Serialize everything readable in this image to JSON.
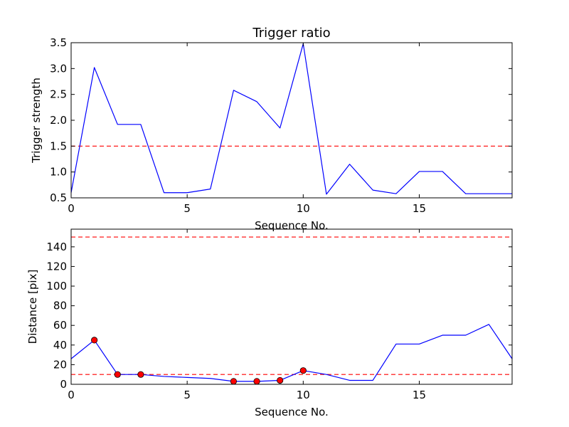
{
  "chart_data": [
    {
      "type": "line",
      "title": "Trigger ratio",
      "xlabel": "Sequence No.",
      "ylabel": "Trigger strength",
      "xlim": [
        0,
        19
      ],
      "ylim": [
        0.5,
        3.5
      ],
      "xticks": [
        0,
        5,
        10,
        15
      ],
      "xtick_labels": [
        "0",
        "5",
        "10",
        "15"
      ],
      "yticks": [
        0.5,
        1.0,
        1.5,
        2.0,
        2.5,
        3.0,
        3.5
      ],
      "ytick_labels": [
        "0.5",
        "1.0",
        "1.5",
        "2.0",
        "2.5",
        "3.0",
        "3.5"
      ],
      "grid": false,
      "series": [
        {
          "color": "#0000ff",
          "style": "solid",
          "x": [
            0,
            1,
            2,
            3,
            4,
            5,
            6,
            7,
            8,
            9,
            10,
            11,
            12,
            13,
            14,
            15,
            16,
            17,
            18,
            19
          ],
          "y": [
            0.6,
            3.02,
            1.92,
            1.92,
            0.6,
            0.6,
            0.67,
            2.58,
            2.36,
            1.85,
            3.48,
            0.57,
            1.15,
            0.65,
            0.58,
            1.01,
            1.01,
            0.58,
            0.58,
            0.58
          ]
        }
      ],
      "reference_lines": [
        {
          "axis": "y",
          "value": 1.5,
          "color": "#ff0000",
          "style": "dashed"
        }
      ]
    },
    {
      "type": "line",
      "title": "",
      "xlabel": "Sequence No.",
      "ylabel": "Distance [pix]",
      "xlim": [
        0,
        19
      ],
      "ylim": [
        0,
        158
      ],
      "xticks": [
        0,
        5,
        10,
        15
      ],
      "xtick_labels": [
        "0",
        "5",
        "10",
        "15"
      ],
      "yticks": [
        0,
        20,
        40,
        60,
        80,
        100,
        120,
        140
      ],
      "ytick_labels": [
        "0",
        "20",
        "40",
        "60",
        "80",
        "100",
        "120",
        "140"
      ],
      "grid": false,
      "series": [
        {
          "color": "#0000ff",
          "style": "solid",
          "x": [
            0,
            1,
            2,
            3,
            4,
            5,
            6,
            7,
            8,
            9,
            10,
            11,
            12,
            13,
            14,
            15,
            16,
            17,
            18,
            19
          ],
          "y": [
            26,
            45,
            10,
            10,
            8,
            7,
            6,
            3,
            3,
            4,
            14,
            10,
            4,
            4,
            41,
            41,
            50,
            50,
            61,
            26
          ]
        }
      ],
      "markers": {
        "color": "#ff0000",
        "x": [
          1,
          2,
          3,
          7,
          8,
          9,
          10
        ],
        "y": [
          45,
          10,
          10,
          3,
          3,
          4,
          14
        ]
      },
      "reference_lines": [
        {
          "axis": "y",
          "value": 150,
          "color": "#ff0000",
          "style": "dashed"
        },
        {
          "axis": "y",
          "value": 10,
          "color": "#ff0000",
          "style": "dashed"
        }
      ]
    }
  ]
}
